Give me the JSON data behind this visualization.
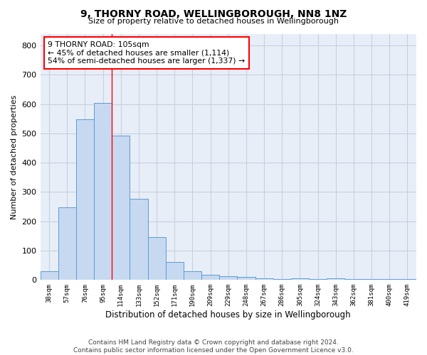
{
  "title": "9, THORNY ROAD, WELLINGBOROUGH, NN8 1NZ",
  "subtitle": "Size of property relative to detached houses in Wellingborough",
  "xlabel": "Distribution of detached houses by size in Wellingborough",
  "ylabel": "Number of detached properties",
  "categories": [
    "38sqm",
    "57sqm",
    "76sqm",
    "95sqm",
    "114sqm",
    "133sqm",
    "152sqm",
    "171sqm",
    "190sqm",
    "209sqm",
    "229sqm",
    "248sqm",
    "267sqm",
    "286sqm",
    "305sqm",
    "324sqm",
    "343sqm",
    "362sqm",
    "381sqm",
    "400sqm",
    "419sqm"
  ],
  "values": [
    30,
    248,
    548,
    605,
    493,
    277,
    145,
    62,
    30,
    18,
    13,
    11,
    5,
    4,
    6,
    3,
    5,
    3,
    3,
    3,
    3
  ],
  "bar_color": "#c6d9f0",
  "bar_edge_color": "#5b9bd5",
  "annotation_box_text_line1": "9 THORNY ROAD: 105sqm",
  "annotation_box_text_line2": "← 45% of detached houses are smaller (1,114)",
  "annotation_box_text_line3": "54% of semi-detached houses are larger (1,337) →",
  "annotation_box_color": "white",
  "annotation_box_edge_color": "red",
  "red_line_x": 3.5,
  "ylim": [
    0,
    840
  ],
  "yticks": [
    0,
    100,
    200,
    300,
    400,
    500,
    600,
    700,
    800
  ],
  "grid_color": "#c8d0de",
  "background_color": "#e8eef8",
  "footer_line1": "Contains HM Land Registry data © Crown copyright and database right 2024.",
  "footer_line2": "Contains public sector information licensed under the Open Government Licence v3.0."
}
